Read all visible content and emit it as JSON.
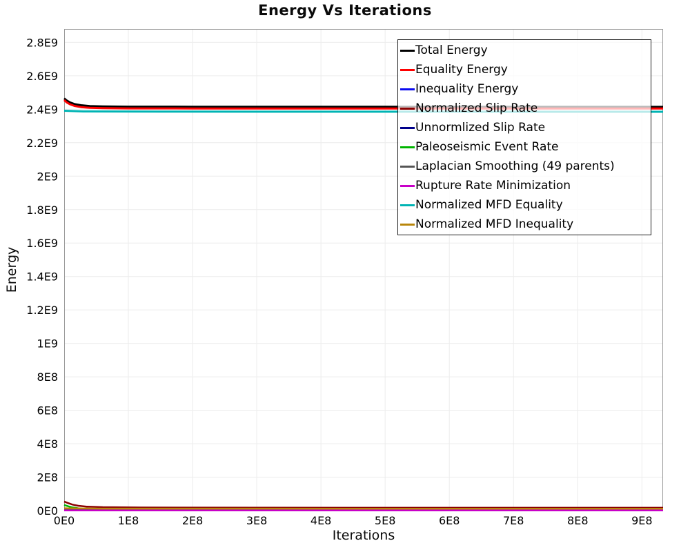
{
  "chart_data": {
    "type": "line",
    "title": "Energy Vs Iterations",
    "xlabel": "Iterations",
    "ylabel": "Energy",
    "xlim": [
      0,
      933000000
    ],
    "ylim": [
      0,
      2880000000
    ],
    "grid": true,
    "gridline_color": "#ececec",
    "plot_border_color": "#9a9a9a",
    "x_ticks": [
      {
        "label": "0E0",
        "value": 0
      },
      {
        "label": "1E8",
        "value": 100000000
      },
      {
        "label": "2E8",
        "value": 200000000
      },
      {
        "label": "3E8",
        "value": 300000000
      },
      {
        "label": "4E8",
        "value": 400000000
      },
      {
        "label": "5E8",
        "value": 500000000
      },
      {
        "label": "6E8",
        "value": 600000000
      },
      {
        "label": "7E8",
        "value": 700000000
      },
      {
        "label": "8E8",
        "value": 800000000
      },
      {
        "label": "9E8",
        "value": 900000000
      }
    ],
    "y_ticks": [
      {
        "label": "0E0",
        "value": 0
      },
      {
        "label": "2E8",
        "value": 200000000
      },
      {
        "label": "4E8",
        "value": 400000000
      },
      {
        "label": "6E8",
        "value": 600000000
      },
      {
        "label": "8E8",
        "value": 800000000
      },
      {
        "label": "1E9",
        "value": 1000000000
      },
      {
        "label": "1.2E9",
        "value": 1200000000
      },
      {
        "label": "1.4E9",
        "value": 1400000000
      },
      {
        "label": "1.6E9",
        "value": 1600000000
      },
      {
        "label": "1.8E9",
        "value": 1800000000
      },
      {
        "label": "2E9",
        "value": 2000000000
      },
      {
        "label": "2.2E9",
        "value": 2200000000
      },
      {
        "label": "2.4E9",
        "value": 2400000000
      },
      {
        "label": "2.6E9",
        "value": 2600000000
      },
      {
        "label": "2.8E9",
        "value": 2800000000
      }
    ],
    "legend": {
      "position": "top-right",
      "border_color": "#1a1a1a",
      "background": "rgba(255,255,255,0.72)"
    },
    "series": [
      {
        "name": "Total Energy",
        "color": "#000000",
        "width": 3,
        "points": [
          [
            0,
            2465000000.0
          ],
          [
            4000000.0,
            2452000000.0
          ],
          [
            9000000.0,
            2441000000.0
          ],
          [
            16000000.0,
            2431000000.0
          ],
          [
            26000000.0,
            2424000000.0
          ],
          [
            40000000.0,
            2419000000.0
          ],
          [
            60000000.0,
            2417000000.0
          ],
          [
            100000000.0,
            2415500000.0
          ],
          [
            200000000.0,
            2414800000.0
          ],
          [
            500000000.0,
            2414500000.0
          ],
          [
            933000000.0,
            2414300000.0
          ]
        ]
      },
      {
        "name": "Equality Energy",
        "color": "#fe0000",
        "width": 3,
        "points": [
          [
            0,
            2455000000.0
          ],
          [
            4000000.0,
            2441000000.0
          ],
          [
            9000000.0,
            2430000000.0
          ],
          [
            16000000.0,
            2420000000.0
          ],
          [
            26000000.0,
            2413000000.0
          ],
          [
            40000000.0,
            2408500000.0
          ],
          [
            60000000.0,
            2406500000.0
          ],
          [
            100000000.0,
            2405200000.0
          ],
          [
            200000000.0,
            2404600000.0
          ],
          [
            500000000.0,
            2404300000.0
          ],
          [
            933000000.0,
            2404100000.0
          ]
        ]
      },
      {
        "name": "Inequality Energy",
        "color": "#0a0af0",
        "width": 2.5,
        "points": [
          [
            0,
            7000000.0
          ],
          [
            20000000.0,
            3500000.0
          ],
          [
            60000000.0,
            2600000.0
          ],
          [
            933000000.0,
            2200000.0
          ]
        ]
      },
      {
        "name": "Normalized Slip Rate",
        "color": "#8b0000",
        "width": 2.5,
        "points": [
          [
            0,
            54000000.0
          ],
          [
            6000000.0,
            45000000.0
          ],
          [
            13000000.0,
            36000000.0
          ],
          [
            22000000.0,
            29000000.0
          ],
          [
            35000000.0,
            24000000.0
          ],
          [
            60000000.0,
            20500000.0
          ],
          [
            120000000.0,
            18500000.0
          ],
          [
            300000000.0,
            17500000.0
          ],
          [
            933000000.0,
            17000000.0
          ]
        ]
      },
      {
        "name": "Unnormlized Slip Rate",
        "color": "#00008b",
        "width": 2.5,
        "points": [
          [
            0,
            2500000.0
          ],
          [
            933000000.0,
            1600000.0
          ]
        ]
      },
      {
        "name": "Paleoseismic Event Rate",
        "color": "#00b400",
        "width": 2.5,
        "points": [
          [
            0,
            34000000.0
          ],
          [
            6000000.0,
            26000000.0
          ],
          [
            13000000.0,
            19000000.0
          ],
          [
            22000000.0,
            14000000.0
          ],
          [
            35000000.0,
            10500000.0
          ],
          [
            60000000.0,
            8500000.0
          ],
          [
            120000000.0,
            7200000.0
          ],
          [
            933000000.0,
            6500000.0
          ]
        ]
      },
      {
        "name": "Laplacian Smoothing (49 parents)",
        "color": "#555555",
        "width": 2.5,
        "points": [
          [
            0,
            4500000.0
          ],
          [
            30000000.0,
            3000000.0
          ],
          [
            933000000.0,
            2400000.0
          ]
        ]
      },
      {
        "name": "Rupture Rate Minimization",
        "color": "#c800c8",
        "width": 2.5,
        "points": [
          [
            0,
            1200000.0
          ],
          [
            933000000.0,
            900000.0
          ]
        ]
      },
      {
        "name": "Normalized MFD Equality",
        "color": "#00b4b4",
        "width": 3,
        "points": [
          [
            0,
            2391000000.0
          ],
          [
            30000000.0,
            2387000000.0
          ],
          [
            150000000.0,
            2385500000.0
          ],
          [
            933000000.0,
            2385000000.0
          ]
        ]
      },
      {
        "name": "Normalized MFD Inequality",
        "color": "#b8860b",
        "width": 2.5,
        "points": [
          [
            0,
            14000000.0
          ],
          [
            60000000.0,
            12000000.0
          ],
          [
            933000000.0,
            11000000.0
          ]
        ]
      }
    ]
  }
}
